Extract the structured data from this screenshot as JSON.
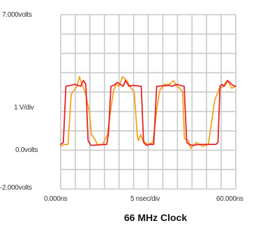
{
  "chart_data": {
    "type": "line",
    "title": "66 MHz Clock",
    "xlabel": "5 nsec/div",
    "ylabel": "1 V/div",
    "xlim": [
      0,
      60
    ],
    "ylim": [
      -2,
      7
    ],
    "x_divisions": 12,
    "y_divisions": 9,
    "grid": true,
    "labels": {
      "y_top": "7.000volts",
      "y_mid": "1 V/div",
      "y_zero": "0.0volts",
      "y_bottom": "-2.000volts",
      "x_left": "0.000ns",
      "x_mid": "5 nsec/div",
      "x_right": "60.000ns"
    },
    "series": [
      {
        "color": "#e8222a",
        "x": [
          0,
          0.9,
          1.8,
          5.0,
          6.8,
          7.8,
          8.6,
          9.4,
          10.4,
          15.8,
          16.4,
          17.2,
          18.2,
          19.4,
          21.4,
          22.2,
          23.4,
          24.8,
          27.6,
          28.4,
          29.4,
          30.4,
          31.2,
          31.9,
          32.9,
          37.2,
          38.2,
          39.6,
          42.3,
          43.2,
          44.0,
          45.0,
          47.6,
          48.8,
          53.2,
          53.9,
          54.6,
          55.3,
          56.0,
          57.2,
          59.0,
          60.0
        ],
        "y": [
          0.3,
          0.4,
          3.3,
          3.4,
          3.3,
          3.6,
          3.4,
          0.5,
          0.25,
          0.3,
          0.9,
          3.3,
          3.35,
          3.5,
          3.3,
          3.6,
          3.3,
          3.35,
          3.3,
          0.4,
          0.25,
          0.3,
          0.3,
          0.3,
          3.3,
          3.35,
          3.3,
          3.4,
          3.3,
          0.4,
          0.3,
          0.25,
          0.3,
          0.3,
          0.3,
          0.4,
          3.3,
          3.4,
          3.3,
          3.6,
          3.35,
          3.3
        ]
      },
      {
        "color": "#f5a21f",
        "x": [
          0,
          1.2,
          2.5,
          3.6,
          5.6,
          6.4,
          7.3,
          8.4,
          9.8,
          10.6,
          11.6,
          12.6,
          14.4,
          16.0,
          18.0,
          19.0,
          20.0,
          21.2,
          22.6,
          24.2,
          25.2,
          26.3,
          26.6,
          27.4,
          28.2,
          29.8,
          31.6,
          33.2,
          34.0,
          35.6,
          37.2,
          38.6,
          39.8,
          40.8,
          41.8,
          42.4,
          43.8,
          44.6,
          46.4,
          48.6,
          50.6,
          52.8,
          54.4,
          55.8,
          56.5,
          57.2,
          58.6,
          60.0
        ],
        "y": [
          0.2,
          0.3,
          0.3,
          2.9,
          3.3,
          3.8,
          3.4,
          3.0,
          2.0,
          0.8,
          0.6,
          0.3,
          0.3,
          0.8,
          3.0,
          3.4,
          3.3,
          3.8,
          3.6,
          3.2,
          3.0,
          0.7,
          0.5,
          0.8,
          0.5,
          0.3,
          0.4,
          2.4,
          3.1,
          3.4,
          3.4,
          3.6,
          3.3,
          3.2,
          3.0,
          0.6,
          0.5,
          0.1,
          0.4,
          0.2,
          0.3,
          2.6,
          3.2,
          3.3,
          3.5,
          3.6,
          3.2,
          3.3
        ]
      }
    ]
  }
}
